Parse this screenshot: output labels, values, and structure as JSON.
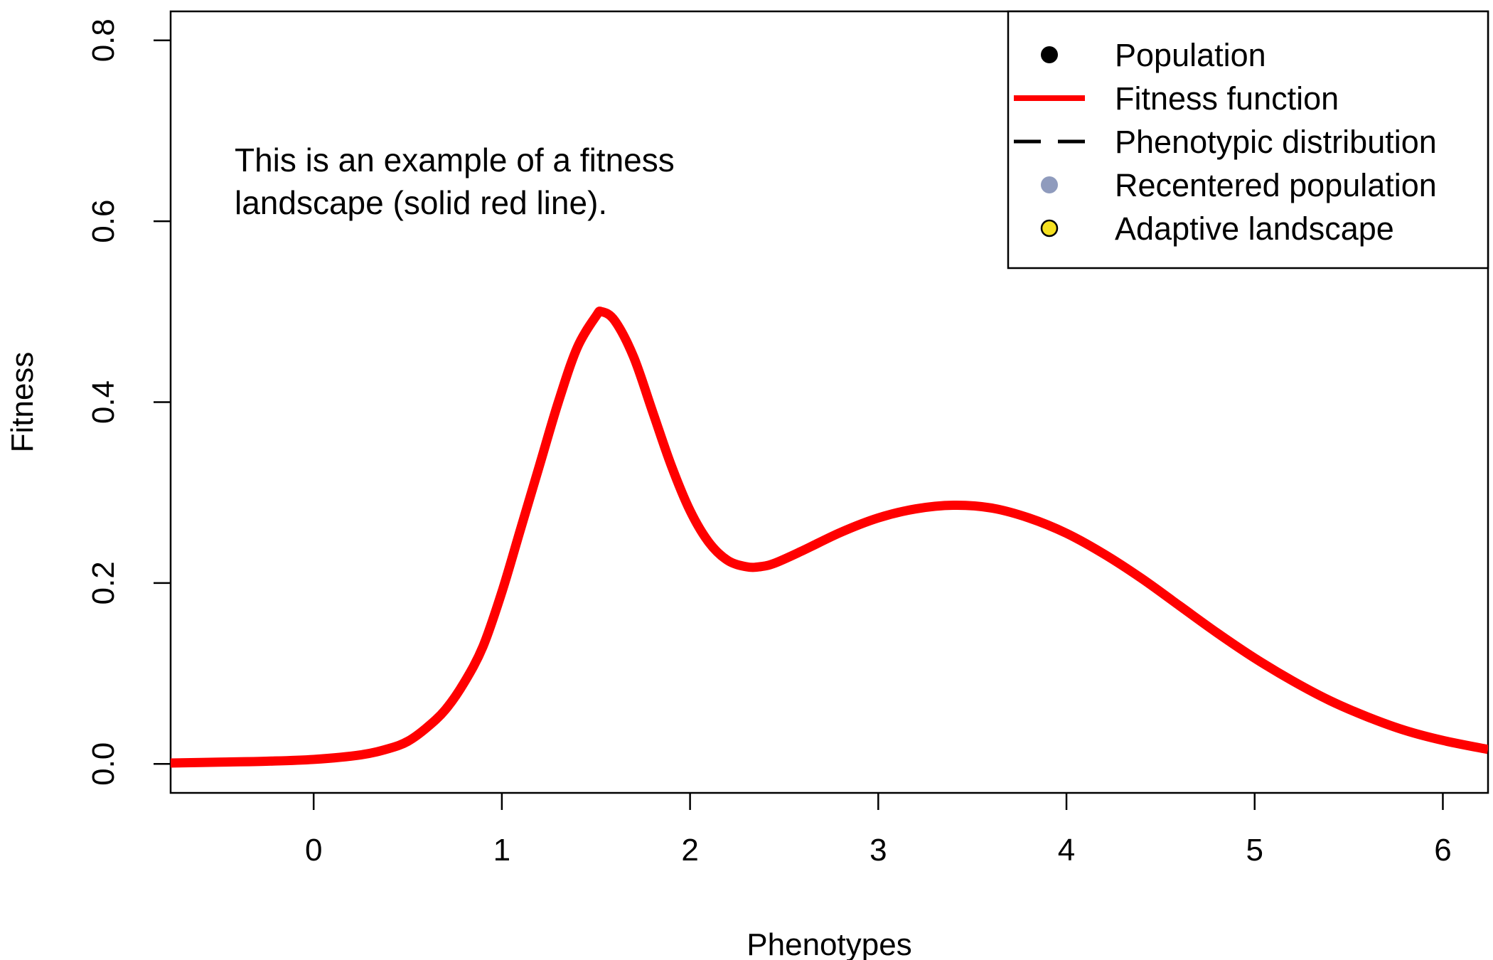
{
  "chart_data": {
    "type": "line",
    "xlabel": "Phenotypes",
    "ylabel": "Fitness",
    "xlim": [
      -0.76,
      6.24
    ],
    "ylim": [
      -0.032,
      0.832
    ],
    "xticks": [
      0,
      1,
      2,
      3,
      4,
      5,
      6
    ],
    "yticks": [
      0.0,
      0.2,
      0.4,
      0.6,
      0.8
    ],
    "xtick_labels": [
      "0",
      "1",
      "2",
      "3",
      "4",
      "5",
      "6"
    ],
    "ytick_labels": [
      "0.0",
      "0.2",
      "0.4",
      "0.6",
      "0.8"
    ],
    "grid": false,
    "legend_position": "top-right",
    "annotation": {
      "lines": [
        "This is an example of a fitness",
        "landscape (solid red line)."
      ],
      "x": -0.42,
      "y": 0.655
    },
    "legend": [
      {
        "label": "Population",
        "symbol": "point",
        "color": "#000000"
      },
      {
        "label": "Fitness function",
        "symbol": "line",
        "color": "#ff0000"
      },
      {
        "label": "Phenotypic distribution",
        "symbol": "dashed",
        "color": "#000000"
      },
      {
        "label": "Recentered population",
        "symbol": "point",
        "color": "#8f9bbd"
      },
      {
        "label": "Adaptive landscape",
        "symbol": "point-outlined",
        "color": "#f5e020"
      }
    ],
    "series": [
      {
        "name": "Fitness function",
        "color": "#ff0000",
        "x": [
          -0.76,
          -0.5,
          -0.25,
          0.0,
          0.25,
          0.4,
          0.5,
          0.6,
          0.7,
          0.8,
          0.9,
          1.0,
          1.1,
          1.2,
          1.3,
          1.4,
          1.5,
          1.53,
          1.6,
          1.7,
          1.8,
          1.9,
          2.0,
          2.1,
          2.2,
          2.3,
          2.37,
          2.45,
          2.6,
          2.8,
          3.0,
          3.2,
          3.4,
          3.6,
          3.8,
          4.0,
          4.2,
          4.4,
          4.6,
          4.8,
          5.0,
          5.2,
          5.4,
          5.6,
          5.8,
          6.0,
          6.24
        ],
        "y": [
          0.001,
          0.002,
          0.003,
          0.005,
          0.01,
          0.017,
          0.025,
          0.04,
          0.06,
          0.09,
          0.13,
          0.19,
          0.26,
          0.33,
          0.4,
          0.46,
          0.495,
          0.5,
          0.49,
          0.45,
          0.39,
          0.33,
          0.28,
          0.245,
          0.225,
          0.218,
          0.218,
          0.222,
          0.236,
          0.256,
          0.272,
          0.282,
          0.286,
          0.283,
          0.272,
          0.255,
          0.232,
          0.205,
          0.175,
          0.145,
          0.117,
          0.092,
          0.07,
          0.052,
          0.037,
          0.026,
          0.016
        ]
      }
    ]
  }
}
